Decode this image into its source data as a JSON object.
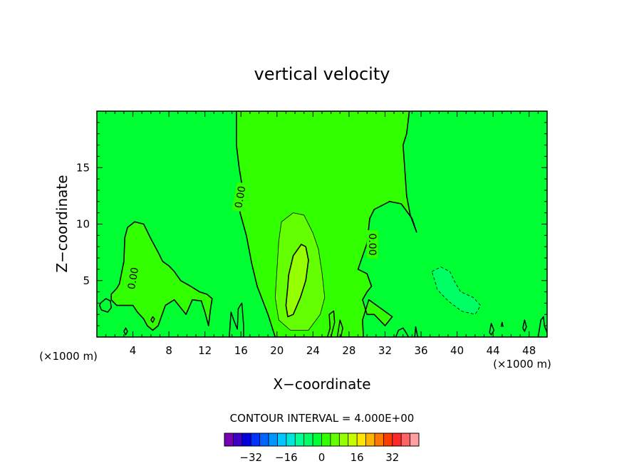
{
  "chart_data": {
    "type": "contour",
    "title": "vertical velocity",
    "xlabel": "X−coordinate",
    "ylabel": "Z−coordinate",
    "x_unit_label": "(×1000 m)",
    "y_unit_label": "(×1000 m)",
    "xlim": [
      0,
      50
    ],
    "ylim": [
      0,
      20
    ],
    "x_ticks": [
      4,
      8,
      12,
      16,
      20,
      24,
      28,
      32,
      36,
      40,
      44,
      48
    ],
    "y_ticks": [
      5,
      10,
      15
    ],
    "contour_interval_text": "CONTOUR INTERVAL = 4.000E+00",
    "zero_contour_label": "0.00",
    "colorbar": {
      "colors": [
        "#7a00b4",
        "#3c00c8",
        "#0000dc",
        "#0032ff",
        "#0064ff",
        "#0096ff",
        "#00c8ff",
        "#00e6dc",
        "#00ff96",
        "#00ff64",
        "#00ff32",
        "#32ff00",
        "#64ff00",
        "#96ff00",
        "#c8ff00",
        "#ffe600",
        "#ffb400",
        "#ff7800",
        "#ff3c00",
        "#ff2828",
        "#ff6464",
        "#ffa0a0"
      ],
      "min": -44,
      "max": 44,
      "tick_values": [
        -32,
        -16,
        0,
        16,
        32
      ],
      "tick_labels": [
        "−32",
        "−16",
        "0",
        "16",
        "32"
      ]
    },
    "background_color": "#00ff32",
    "regions": [
      {
        "level": 0,
        "color": "#32ff00",
        "solid": true,
        "points": [
          [
            15.5,
            20
          ],
          [
            15.5,
            17
          ],
          [
            15.8,
            15
          ],
          [
            16.2,
            13
          ],
          [
            15.8,
            12
          ],
          [
            15.9,
            11
          ],
          [
            16.6,
            9
          ],
          [
            17.2,
            6.5
          ],
          [
            17.8,
            4.5
          ],
          [
            19.0,
            2.0
          ],
          [
            19.8,
            0
          ],
          [
            29.6,
            0
          ],
          [
            29.5,
            1.5
          ],
          [
            30.2,
            3.3
          ],
          [
            31.6,
            2.5
          ],
          [
            32.8,
            1.8
          ],
          [
            32.0,
            1.0
          ],
          [
            30.8,
            2.0
          ],
          [
            30.0,
            2.0
          ],
          [
            29.5,
            3.3
          ],
          [
            30.0,
            4.0
          ],
          [
            30.5,
            4.5
          ],
          [
            30.0,
            5.6
          ],
          [
            29.0,
            6.0
          ],
          [
            30.0,
            8.3
          ],
          [
            30.3,
            10.5
          ],
          [
            30.8,
            11.3
          ],
          [
            32.5,
            12.0
          ],
          [
            33.8,
            11.8
          ],
          [
            35.0,
            10.5
          ],
          [
            35.5,
            9.3
          ],
          [
            34.8,
            10.8
          ],
          [
            34.4,
            12.5
          ],
          [
            34.2,
            14.8
          ],
          [
            34.0,
            17.0
          ],
          [
            34.4,
            18.0
          ],
          [
            34.7,
            20
          ]
        ]
      },
      {
        "level": 0,
        "color": "#32ff00",
        "solid": true,
        "points": [
          [
            2.5,
            4.7
          ],
          [
            3.0,
            6.7
          ],
          [
            3.1,
            8.8
          ],
          [
            3.4,
            9.7
          ],
          [
            4.2,
            10.2
          ],
          [
            5.2,
            10.0
          ],
          [
            6.0,
            8.7
          ],
          [
            6.8,
            7.5
          ],
          [
            7.3,
            6.7
          ],
          [
            8.0,
            6.3
          ],
          [
            8.6,
            5.8
          ],
          [
            9.3,
            5.0
          ],
          [
            10.4,
            4.5
          ],
          [
            11.4,
            4.0
          ],
          [
            12.2,
            3.8
          ],
          [
            12.8,
            3.4
          ],
          [
            12.6,
            2.4
          ],
          [
            12.4,
            1.0
          ],
          [
            12.0,
            2.2
          ],
          [
            11.6,
            3.2
          ],
          [
            10.6,
            3.3
          ],
          [
            9.9,
            2.0
          ],
          [
            8.6,
            3.3
          ],
          [
            7.6,
            2.8
          ],
          [
            6.8,
            1.0
          ],
          [
            6.2,
            0.6
          ],
          [
            5.6,
            1.0
          ],
          [
            5.2,
            1.6
          ],
          [
            4.5,
            2.2
          ],
          [
            4.0,
            2.8
          ],
          [
            3.2,
            2.8
          ],
          [
            2.2,
            2.8
          ],
          [
            1.6,
            3.3
          ],
          [
            1.6,
            3.8
          ],
          [
            2.2,
            4.3
          ]
        ]
      },
      {
        "level": 4,
        "color": "#64ff00",
        "solid": false,
        "points": [
          [
            20.5,
            10.2
          ],
          [
            21.8,
            11.0
          ],
          [
            23.0,
            10.8
          ],
          [
            24.0,
            9.2
          ],
          [
            24.6,
            7.8
          ],
          [
            25.0,
            5.7
          ],
          [
            25.3,
            3.5
          ],
          [
            24.8,
            2.0
          ],
          [
            23.5,
            0.6
          ],
          [
            21.5,
            0.6
          ],
          [
            20.2,
            1.5
          ],
          [
            19.8,
            3.5
          ],
          [
            20.0,
            6.0
          ],
          [
            20.2,
            8.5
          ]
        ]
      },
      {
        "level": 8,
        "color": "#96ff00",
        "solid": true,
        "points": [
          [
            21.8,
            7.2
          ],
          [
            22.7,
            8.2
          ],
          [
            23.2,
            8.0
          ],
          [
            23.5,
            6.8
          ],
          [
            23.2,
            5.0
          ],
          [
            22.6,
            3.5
          ],
          [
            21.8,
            2.0
          ],
          [
            21.2,
            1.8
          ],
          [
            21.0,
            2.8
          ],
          [
            21.2,
            4.5
          ],
          [
            21.3,
            5.5
          ]
        ]
      },
      {
        "level": -4,
        "color": "#00ff64",
        "solid": false,
        "points": [
          [
            37.2,
            5.8
          ],
          [
            38.2,
            6.2
          ],
          [
            39.2,
            5.8
          ],
          [
            39.8,
            4.8
          ],
          [
            40.4,
            4.0
          ],
          [
            41.8,
            3.5
          ],
          [
            42.6,
            2.8
          ],
          [
            42.0,
            2.0
          ],
          [
            40.5,
            2.3
          ],
          [
            39.0,
            3.2
          ],
          [
            37.8,
            4.2
          ],
          [
            37.6,
            4.8
          ]
        ]
      }
    ],
    "zero_lines": [
      [
        [
          0.4,
          3.0
        ],
        [
          1.0,
          3.4
        ],
        [
          1.5,
          3.2
        ],
        [
          1.6,
          2.6
        ],
        [
          1.2,
          2.2
        ],
        [
          0.5,
          2.4
        ],
        [
          0.3,
          2.8
        ],
        [
          0.4,
          3.0
        ]
      ],
      [
        [
          14.7,
          0
        ],
        [
          14.9,
          2.2
        ],
        [
          15.2,
          1.5
        ],
        [
          15.6,
          0.7
        ],
        [
          15.7,
          2.5
        ],
        [
          16.1,
          3.0
        ],
        [
          16.3,
          1.0
        ],
        [
          16.3,
          0
        ]
      ],
      [
        [
          25.6,
          0
        ],
        [
          25.9,
          0.8
        ],
        [
          25.8,
          2.0
        ],
        [
          26.3,
          2.3
        ],
        [
          26.4,
          1.3
        ],
        [
          26.0,
          0
        ]
      ],
      [
        [
          26.7,
          0
        ],
        [
          27.0,
          1.5
        ],
        [
          27.3,
          0.8
        ],
        [
          27.1,
          0
        ]
      ],
      [
        [
          33.2,
          0
        ],
        [
          33.5,
          0.6
        ],
        [
          34.0,
          0.8
        ],
        [
          34.4,
          0.3
        ],
        [
          34.6,
          0
        ]
      ],
      [
        [
          35.3,
          0
        ],
        [
          35.4,
          0.9
        ],
        [
          35.6,
          0.1
        ],
        [
          35.7,
          0
        ]
      ],
      [
        [
          43.6,
          0.4
        ],
        [
          43.8,
          1.2
        ],
        [
          44.1,
          0.6
        ],
        [
          43.8,
          0.2
        ],
        [
          43.6,
          0.4
        ]
      ],
      [
        [
          44.9,
          0.9
        ],
        [
          45.0,
          1.3
        ],
        [
          45.1,
          0.9
        ]
      ],
      [
        [
          47.3,
          0.8
        ],
        [
          47.5,
          1.5
        ],
        [
          47.7,
          0.9
        ],
        [
          47.5,
          0.5
        ],
        [
          47.3,
          0.8
        ]
      ],
      [
        [
          49.0,
          0
        ],
        [
          49.3,
          1.5
        ],
        [
          49.6,
          1.8
        ],
        [
          49.7,
          1.0
        ],
        [
          50,
          0.4
        ]
      ],
      [
        [
          6.0,
          1.5
        ],
        [
          6.2,
          1.8
        ],
        [
          6.4,
          1.6
        ],
        [
          6.2,
          1.3
        ],
        [
          6.0,
          1.5
        ]
      ],
      [
        [
          3.0,
          0.5
        ],
        [
          3.2,
          0.8
        ],
        [
          3.4,
          0.5
        ],
        [
          3.2,
          0.2
        ],
        [
          3.0,
          0.5
        ]
      ]
    ],
    "zero_labels": [
      {
        "x": 15.9,
        "y": 12.4,
        "rotate": -80
      },
      {
        "x": 30.6,
        "y": 8.2,
        "rotate": 90
      },
      {
        "x": 4.0,
        "y": 5.2,
        "rotate": -80
      }
    ]
  }
}
